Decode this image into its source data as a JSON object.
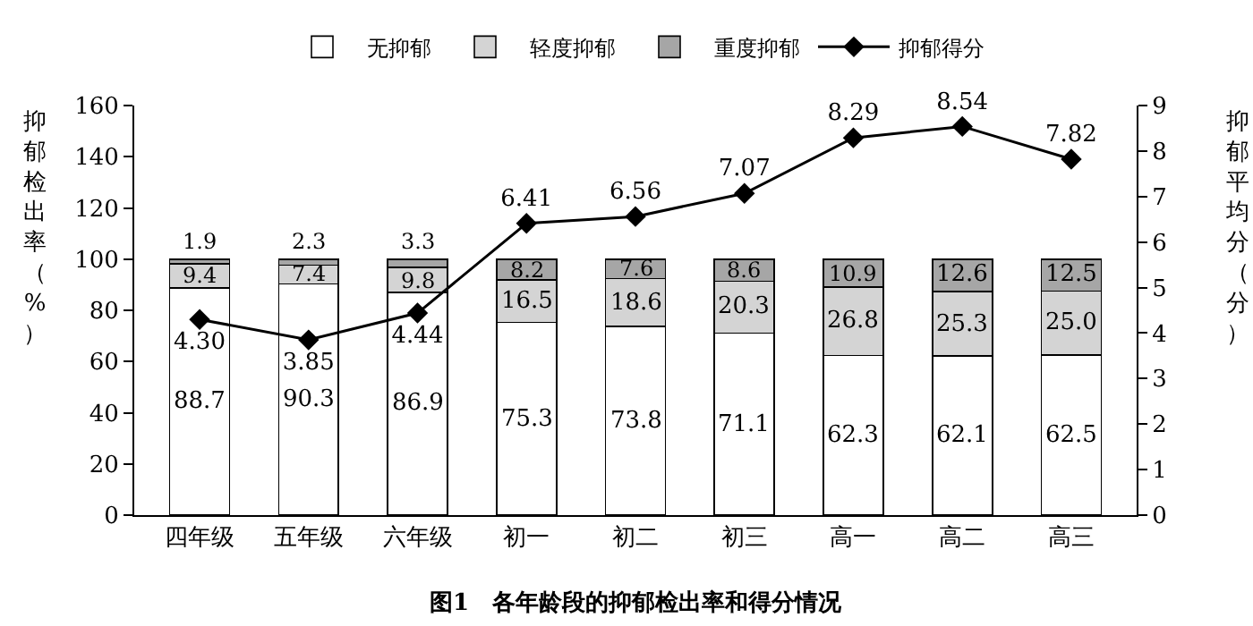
{
  "chart_data": {
    "type": "bar",
    "stacked": true,
    "categories": [
      "四年级",
      "五年级",
      "六年级",
      "初一",
      "初二",
      "初三",
      "高一",
      "高二",
      "高三"
    ],
    "ylabel": "抑郁检出率（%）",
    "y2label": "抑郁平均分（分）",
    "ylim": [
      0,
      160
    ],
    "yticks": [
      0,
      20,
      40,
      60,
      80,
      100,
      120,
      140,
      160
    ],
    "y2lim": [
      0,
      9
    ],
    "y2ticks": [
      0,
      1,
      2,
      3,
      4,
      5,
      6,
      7,
      8,
      9
    ],
    "legend": "top",
    "series": [
      {
        "name": "无抑郁",
        "color": "#ffffff",
        "values": [
          88.7,
          90.3,
          86.9,
          75.3,
          73.8,
          71.1,
          62.3,
          62.1,
          62.5
        ],
        "value_labels": [
          "88.7",
          "90.3",
          "86.9",
          "75.3",
          "73.8",
          "71.1",
          "62.3",
          "62.1",
          "62.5"
        ]
      },
      {
        "name": "轻度抑郁",
        "color": "#d4d4d4",
        "values": [
          9.4,
          7.4,
          9.8,
          16.5,
          18.6,
          20.3,
          26.8,
          25.3,
          25.0
        ],
        "value_labels": [
          "9.4",
          "7.4",
          "9.8",
          "16.5",
          "18.6",
          "20.3",
          "26.8",
          "25.3",
          "25.0"
        ]
      },
      {
        "name": "重度抑郁",
        "color": "#a6a6a6",
        "values": [
          1.9,
          2.3,
          3.3,
          8.2,
          7.6,
          8.6,
          10.9,
          12.6,
          12.5
        ],
        "value_labels": [
          "1.9",
          "2.3",
          "3.3",
          "8.2",
          "7.6",
          "8.6",
          "10.9",
          "12.6",
          "12.5"
        ]
      },
      {
        "name": "抑郁得分",
        "type": "line",
        "axis": "y2",
        "color": "#000000",
        "marker": "diamond",
        "line_style": "solid",
        "values": [
          4.3,
          3.85,
          4.44,
          6.41,
          6.56,
          7.07,
          8.29,
          8.54,
          7.82
        ],
        "value_labels": [
          "4.30",
          "3.85",
          "4.44",
          "6.41",
          "6.56",
          "7.07",
          "8.29",
          "8.54",
          "7.82"
        ]
      }
    ],
    "annotations": [
      "图1　各年龄段的抑郁检出率和得分情况"
    ]
  }
}
